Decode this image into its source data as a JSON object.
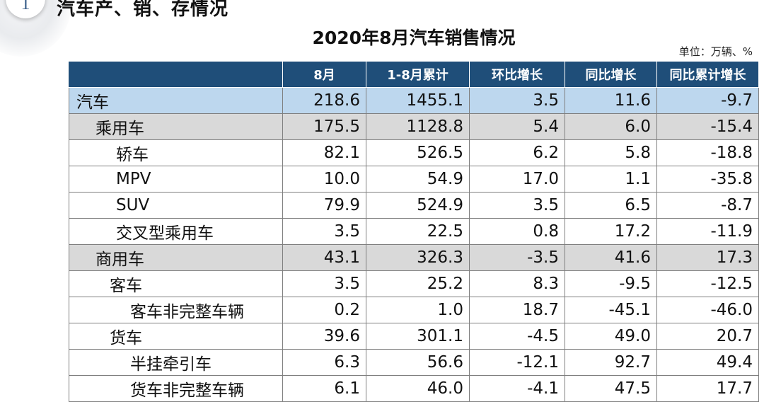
{
  "section": {
    "number": "1",
    "title": "汽车产、销、存情况"
  },
  "table": {
    "title": "2020年8月汽车销售情况",
    "unit": "单位：万辆、%",
    "headers": [
      "",
      "8月",
      "1-8月累计",
      "环比增长",
      "同比增长",
      "同比累计增长"
    ],
    "rows": [
      {
        "name": "汽车",
        "level": 0,
        "values": [
          "218.6",
          "1455.1",
          "3.5",
          "11.6",
          "-9.7"
        ]
      },
      {
        "name": "乘用车",
        "level": 1,
        "values": [
          "175.5",
          "1128.8",
          "5.4",
          "6.0",
          "-15.4"
        ]
      },
      {
        "name": "轿车",
        "level": 2,
        "values": [
          "82.1",
          "526.5",
          "6.2",
          "5.8",
          "-18.8"
        ]
      },
      {
        "name": "MPV",
        "level": 2,
        "values": [
          "10.0",
          "54.9",
          "17.0",
          "1.1",
          "-35.8"
        ]
      },
      {
        "name": "SUV",
        "level": 2,
        "values": [
          "79.9",
          "524.9",
          "3.5",
          "6.5",
          "-8.7"
        ]
      },
      {
        "name": "交叉型乘用车",
        "level": 2,
        "values": [
          "3.5",
          "22.5",
          "0.8",
          "17.2",
          "-11.9"
        ]
      },
      {
        "name": "商用车",
        "level": 1,
        "values": [
          "43.1",
          "326.3",
          "-3.5",
          "41.6",
          "17.3"
        ]
      },
      {
        "name": "客车",
        "level": 2,
        "values": [
          "3.5",
          "25.2",
          "8.3",
          "-9.5",
          "-12.5"
        ]
      },
      {
        "name": "客车非完整车辆",
        "level": 3,
        "values": [
          "0.2",
          "1.0",
          "18.7",
          "-45.1",
          "-46.0"
        ]
      },
      {
        "name": "货车",
        "level": 2,
        "values": [
          "39.6",
          "301.1",
          "-4.5",
          "49.0",
          "20.7"
        ]
      },
      {
        "name": "半挂牵引车",
        "level": 3,
        "values": [
          "6.3",
          "56.6",
          "-12.1",
          "92.7",
          "49.4"
        ]
      },
      {
        "name": "货车非完整车辆",
        "level": 3,
        "values": [
          "6.1",
          "46.0",
          "-4.1",
          "47.5",
          "17.7"
        ]
      }
    ]
  },
  "colors": {
    "header_bg": "#1f4e79",
    "total_row_bg": "#bdd7ee",
    "subtotal_row_bg": "#d9d9d9"
  }
}
